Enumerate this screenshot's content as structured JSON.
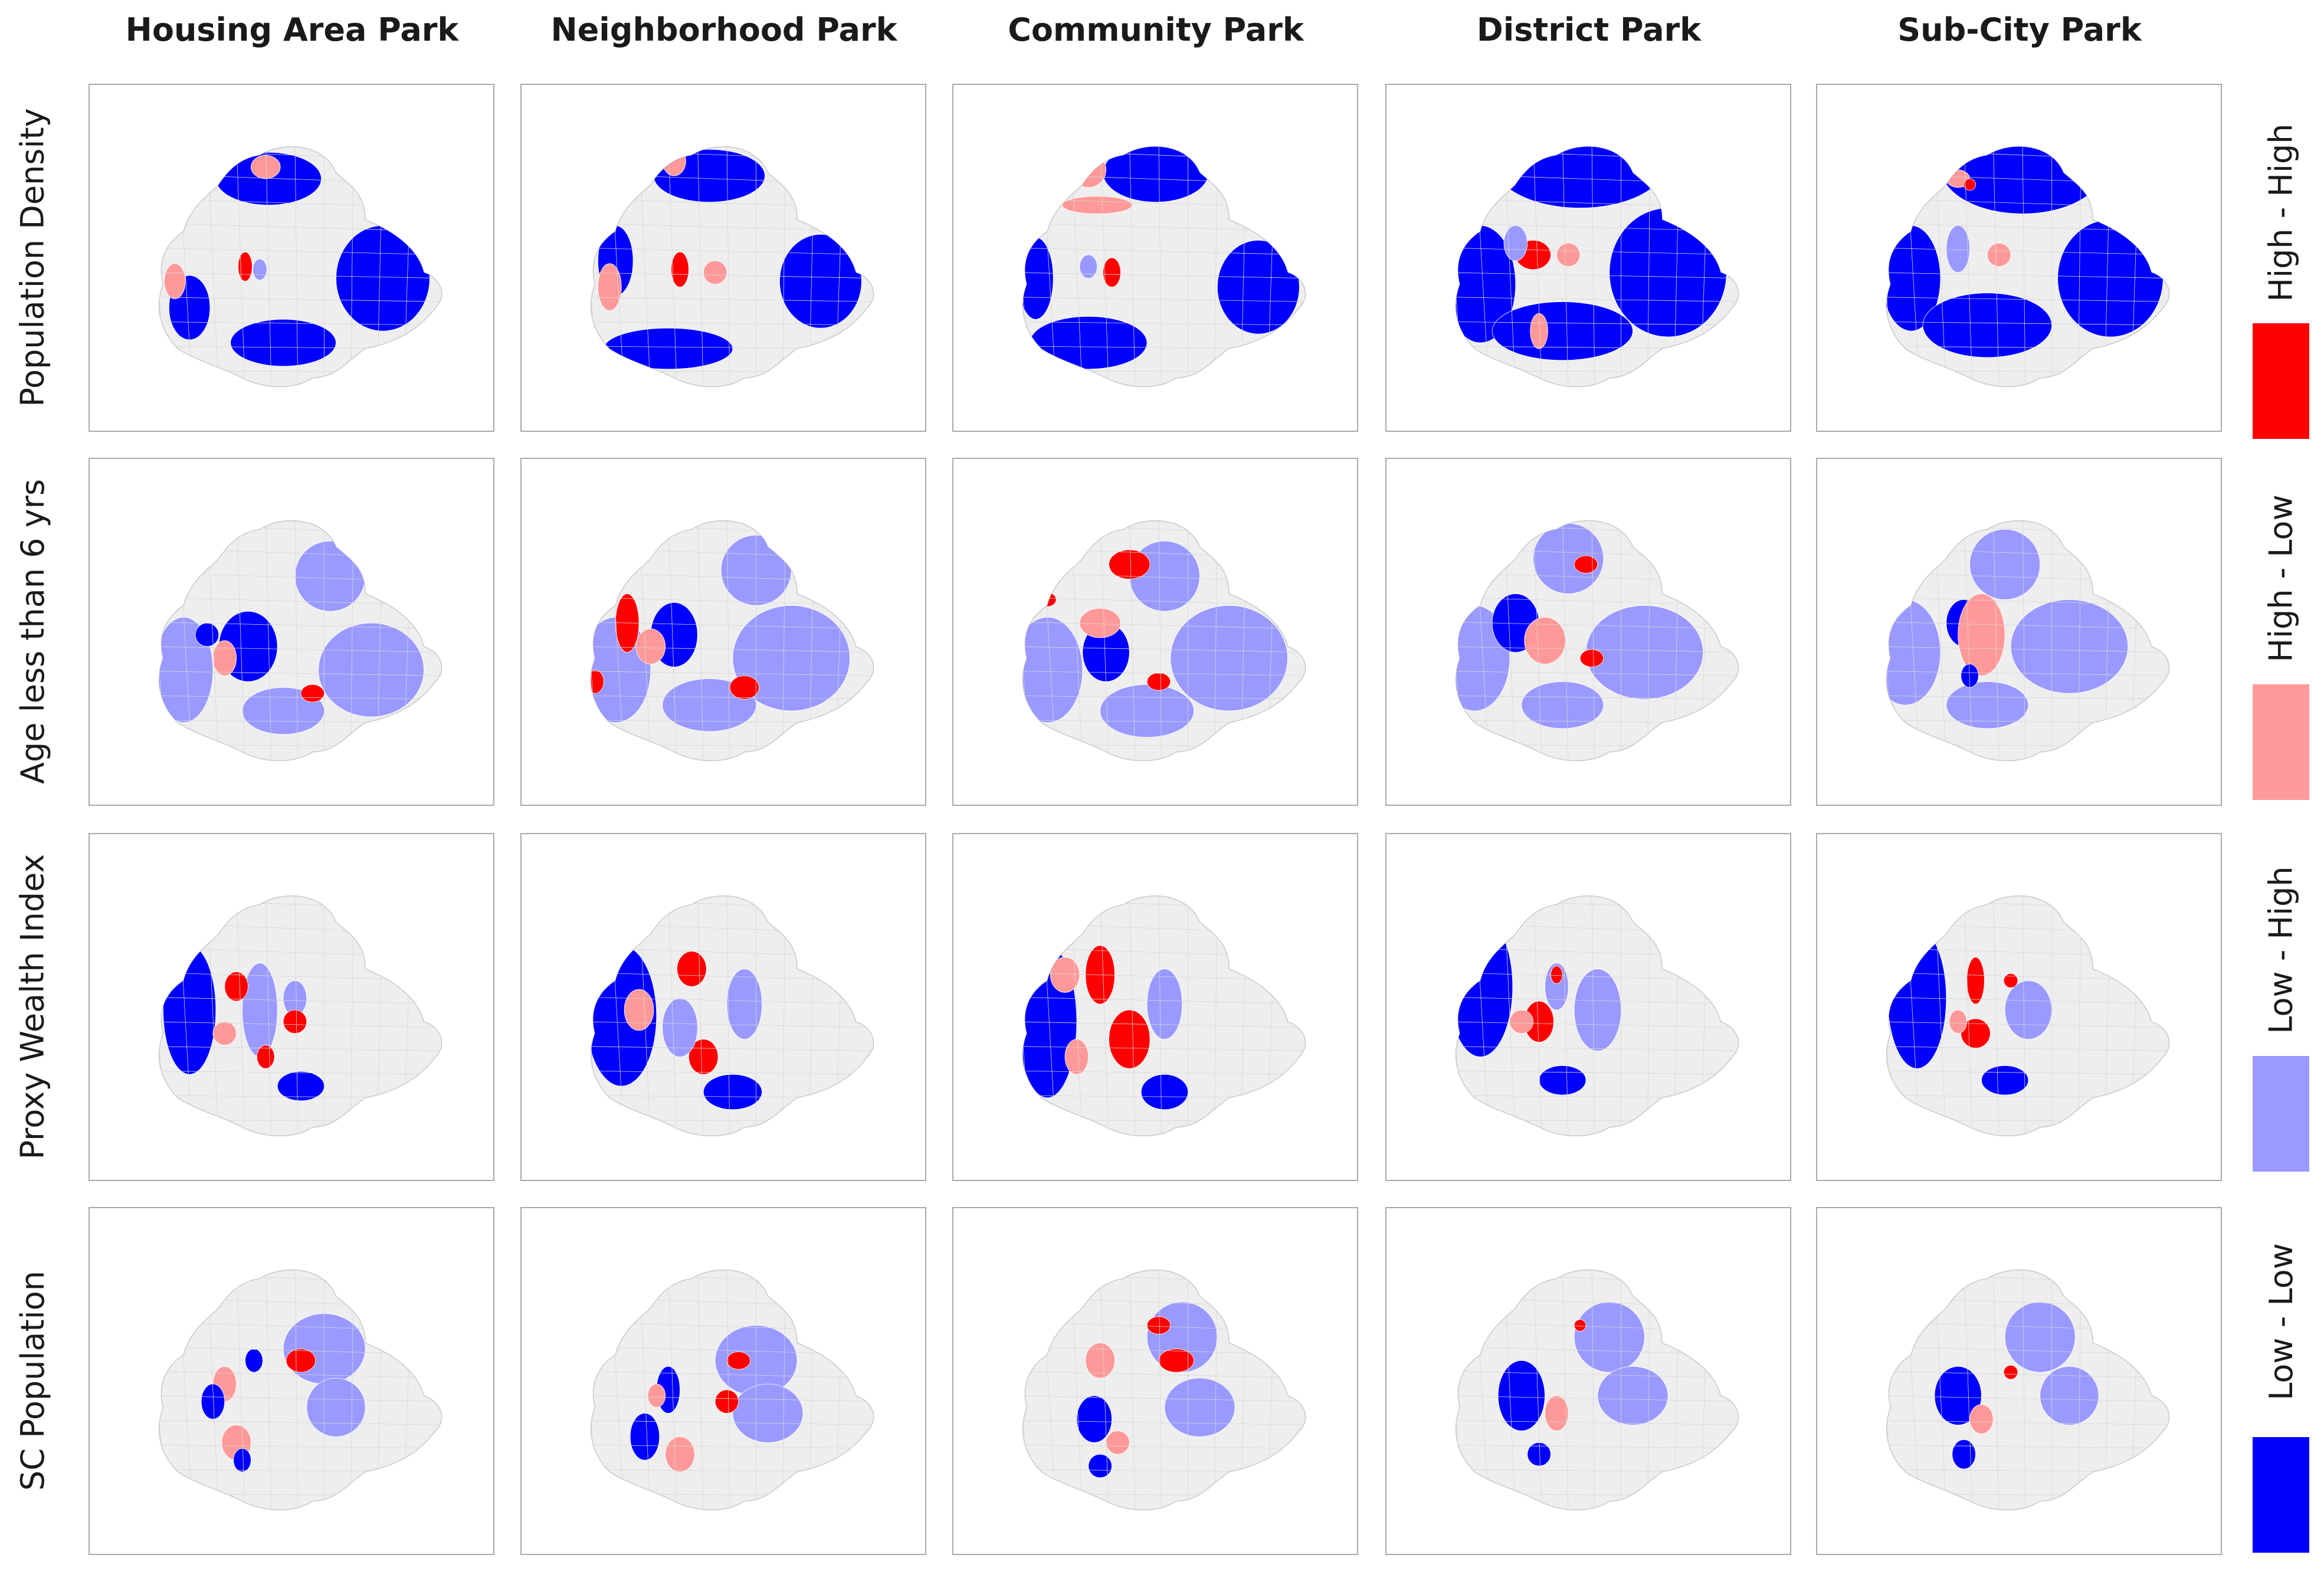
{
  "columns": [
    "Housing Area Park",
    "Neighborhood Park",
    "Community Park",
    "District Park",
    "Sub-City Park"
  ],
  "rows": [
    "Population Density",
    "Age less than 6 yrs",
    "Proxy Wealth Index",
    "SC Population"
  ],
  "legend": [
    {
      "label": "High - High",
      "color": "#ff0000"
    },
    {
      "label": "High - Low",
      "color": "#ff9999"
    },
    {
      "label": "Low - High",
      "color": "#9999ff"
    },
    {
      "label": "Low - Low",
      "color": "#0000ff"
    }
  ],
  "base_color": "#eeeeee"
}
